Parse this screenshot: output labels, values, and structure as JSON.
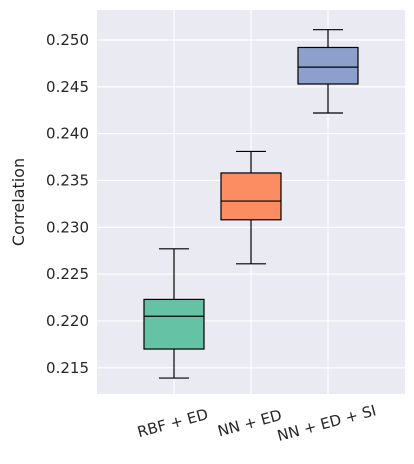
{
  "chart_data": {
    "type": "box",
    "title": "",
    "xlabel": "",
    "ylabel": "Correlation",
    "ylim": [
      0.2122,
      0.2532
    ],
    "yticks": [
      0.215,
      0.22,
      0.225,
      0.23,
      0.235,
      0.24,
      0.245,
      0.25
    ],
    "ytick_labels": [
      "0.215",
      "0.220",
      "0.225",
      "0.230",
      "0.235",
      "0.240",
      "0.245",
      "0.250"
    ],
    "categories": [
      "RBF + ED",
      "NN + ED",
      "NN + ED + SI"
    ],
    "grid": true,
    "legend": "none",
    "boxes": [
      {
        "label": "RBF + ED",
        "whisker_low": 0.2139,
        "q1": 0.217,
        "median": 0.2205,
        "q3": 0.2223,
        "whisker_high": 0.2277,
        "color": "#66c2a5"
      },
      {
        "label": "NN + ED",
        "whisker_low": 0.2261,
        "q1": 0.2308,
        "median": 0.2328,
        "q3": 0.2358,
        "whisker_high": 0.2381,
        "color": "#fc8d62"
      },
      {
        "label": "NN + ED + SI",
        "whisker_low": 0.2422,
        "q1": 0.2453,
        "median": 0.2471,
        "q3": 0.2492,
        "whisker_high": 0.2511,
        "color": "#8da0cb"
      }
    ],
    "background_color": "#eaeaf2",
    "grid_color": "#ffffff"
  }
}
